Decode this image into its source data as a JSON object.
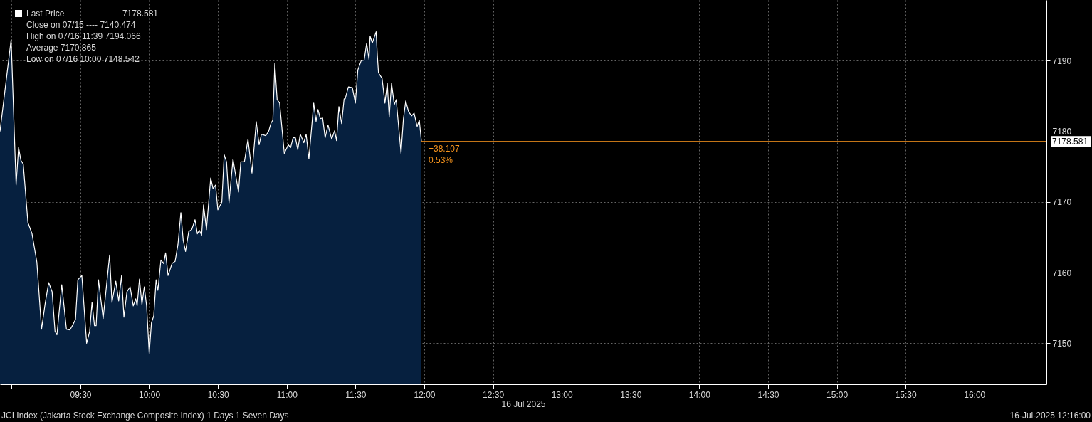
{
  "chart_data": {
    "type": "area",
    "xlabel": "16 Jul 2025",
    "x": [
      8.915,
      8.996,
      9.032,
      9.05,
      9.067,
      9.084,
      9.118,
      9.148,
      9.183,
      9.217,
      9.243,
      9.269,
      9.294,
      9.315,
      9.329,
      9.364,
      9.398,
      9.424,
      9.441,
      9.464,
      9.481,
      9.51,
      9.545,
      9.567,
      9.584,
      9.602,
      9.614,
      9.631,
      9.665,
      9.712,
      9.729,
      9.757,
      9.778,
      9.799,
      9.816,
      9.838,
      9.861,
      9.884,
      9.902,
      9.912,
      9.929,
      9.947,
      9.964,
      9.981,
      10.0,
      10.016,
      10.033,
      10.05,
      10.063,
      10.085,
      10.105,
      10.119,
      10.137,
      10.166,
      10.188,
      10.209,
      10.23,
      10.247,
      10.264,
      10.287,
      10.309,
      10.333,
      10.35,
      10.364,
      10.381,
      10.395,
      10.416,
      10.447,
      10.464,
      10.482,
      10.499,
      10.528,
      10.545,
      10.562,
      10.58,
      10.609,
      10.649,
      10.666,
      10.692,
      10.718,
      10.747,
      10.778,
      10.799,
      10.816,
      10.847,
      10.868,
      10.886,
      10.899,
      10.913,
      10.93,
      10.948,
      10.982,
      11.011,
      11.028,
      11.046,
      11.063,
      11.08,
      11.098,
      11.124,
      11.141,
      11.161,
      11.196,
      11.213,
      11.227,
      11.244,
      11.261,
      11.279,
      11.3,
      11.327,
      11.348,
      11.362,
      11.379,
      11.399,
      11.417,
      11.425,
      11.448,
      11.477,
      11.499,
      11.517,
      11.541,
      11.563,
      11.581,
      11.598,
      11.606,
      11.622,
      11.65,
      11.658,
      11.667,
      11.693,
      11.714,
      11.731,
      11.745,
      11.762,
      11.782,
      11.796,
      11.831,
      11.848,
      11.865,
      11.886,
      11.908,
      11.926,
      11.948,
      11.964,
      11.979
    ],
    "series": [
      {
        "name": "Last Price",
        "color": "#ffffff",
        "values": [
          7180,
          7193,
          7172.4,
          7177.7,
          7175.9,
          7175.4,
          7167.1,
          7165.5,
          7161.5,
          7152.0,
          7155.6,
          7158.6,
          7157.3,
          7151.7,
          7151.2,
          7158.3,
          7152.0,
          7151.9,
          7152.5,
          7153.4,
          7159.0,
          7159.6,
          7150.0,
          7151.7,
          7155.8,
          7152.5,
          7152.5,
          7159.0,
          7153.5,
          7162.5,
          7155.8,
          7158.8,
          7156.0,
          7159.6,
          7153.7,
          7157.3,
          7158.0,
          7155.3,
          7156.3,
          7155.3,
          7159.1,
          7155.5,
          7158.0,
          7155.3,
          7148.5,
          7152.9,
          7153.9,
          7159.0,
          7157.5,
          7161.8,
          7161.3,
          7162.8,
          7159.6,
          7161.3,
          7161.6,
          7164.0,
          7168.5,
          7164.6,
          7163.0,
          7165.8,
          7166.1,
          7167.5,
          7165.5,
          7166.0,
          7165.3,
          7169.6,
          7166.1,
          7173.4,
          7171.9,
          7172.4,
          7168.9,
          7170.0,
          7176.7,
          7175.7,
          7169.9,
          7176.1,
          7171.4,
          7175.7,
          7175.7,
          7178.9,
          7174.1,
          7181.4,
          7178.1,
          7179.6,
          7179.4,
          7180.0,
          7181.2,
          7181.6,
          7189.6,
          7184.5,
          7184.0,
          7176.9,
          7178.1,
          7177.7,
          7179.1,
          7179.1,
          7177.4,
          7179.6,
          7178.4,
          7179.6,
          7176.1,
          7184.0,
          7181.4,
          7183.1,
          7181.8,
          7181.9,
          7179.1,
          7180.9,
          7178.9,
          7180.1,
          7178.7,
          7183.5,
          7181.1,
          7184.6,
          7184.6,
          7186.3,
          7186.2,
          7184.0,
          7188.7,
          7190.0,
          7190.1,
          7192.5,
          7190.2,
          7193.5,
          7192.5,
          7194.1,
          7191.0,
          7188.3,
          7187.5,
          7184.0,
          7186.8,
          7182.0,
          7186.8,
          7183.8,
          7184.5,
          7176.9,
          7181.7,
          7184.3,
          7182.8,
          7182.2,
          7182.6,
          7180.7,
          7181.6,
          7178.6
        ]
      }
    ],
    "xlim": [
      8.915,
      16.524
    ],
    "xticks": [
      {
        "value": 9,
        "label": null
      },
      {
        "value": 9.5,
        "label": "09:30"
      },
      {
        "value": 10,
        "label": "10:00"
      },
      {
        "value": 10.5,
        "label": "10:30"
      },
      {
        "value": 11,
        "label": "11:00"
      },
      {
        "value": 11.5,
        "label": "11:30"
      },
      {
        "value": 12,
        "label": "12:00"
      },
      {
        "value": 12.5,
        "label": "12:30"
      },
      {
        "value": 13,
        "label": "13:00"
      },
      {
        "value": 13.5,
        "label": "13:30"
      },
      {
        "value": 14,
        "label": "14:00"
      },
      {
        "value": 14.5,
        "label": "14:30"
      },
      {
        "value": 15,
        "label": "15:00"
      },
      {
        "value": 15.5,
        "label": "15:30"
      },
      {
        "value": 16,
        "label": "16:00"
      }
    ],
    "ylim": [
      7144.2,
      7198.6
    ],
    "yticks": [
      7150,
      7160,
      7170,
      7180,
      7190
    ],
    "grid": true,
    "legend": "top left",
    "ref_lines": [
      {
        "axis": "y",
        "value": 7178.581,
        "label": "7178.581",
        "color": "#f7941d",
        "line_style": "solid"
      }
    ],
    "annotations": [
      "7178.581",
      "Close on 07/15 ---- 7140.474",
      "High on 07/16 11:39 7194.066",
      "Average 7170.865",
      "Low on 07/16 10:00 7148.542",
      {
        "text": "+38.107",
        "x": 12.0,
        "y": 7178.581
      },
      {
        "text": "0.53%",
        "x": 12.0,
        "y": 7178.581
      },
      "JCI Index (Jakarta Stock Exchange Composite Index) 1 Days 1 Seven Days",
      "16-Jul-2025 12:16:00"
    ]
  }
}
